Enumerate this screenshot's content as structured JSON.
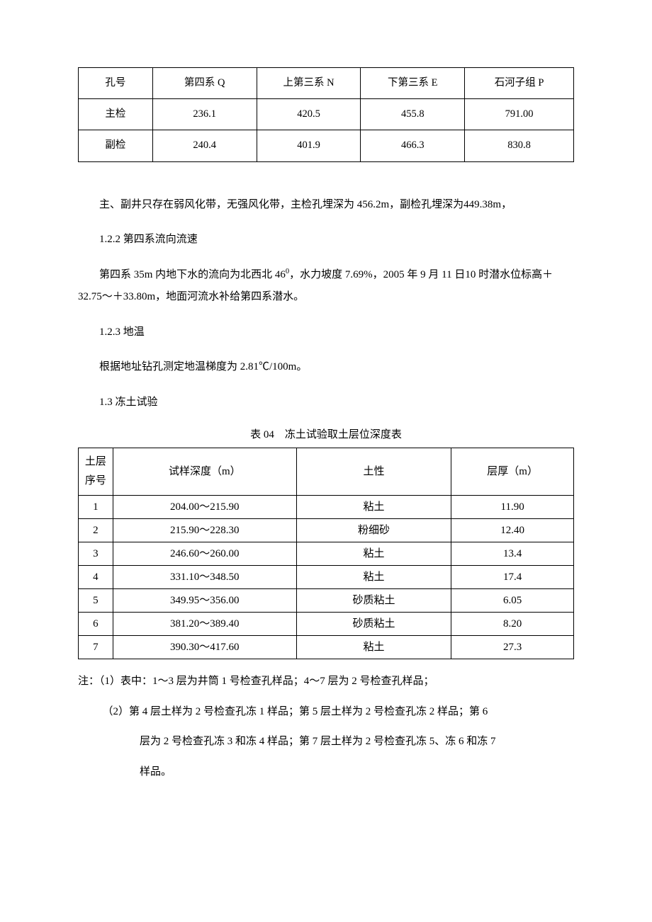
{
  "table1": {
    "headers": [
      "孔号",
      "第四系 Q",
      "上第三系 N",
      "下第三系 E",
      "石河子组 P"
    ],
    "rows": [
      [
        "主检",
        "236.1",
        "420.5",
        "455.8",
        "791.00"
      ],
      [
        "副检",
        "240.4",
        "401.9",
        "466.3",
        "830.8"
      ]
    ],
    "col_widths_pct": [
      15,
      21,
      21,
      21,
      22
    ]
  },
  "paragraphs": {
    "p1": "主、副井只存在弱风化带，无强风化带，主检孔埋深为 456.2m，副检孔埋深为449.38m，",
    "p2_heading": "1.2.2 第四系流向流速",
    "p3_a": "第四系 35m 内地下水的流向为北西北 46",
    "p3_sup": "0",
    "p3_b": "，水力坡度 7.69%，2005 年 9 月 11 日10 时潜水位标高＋32.75～＋33.80m，地面河流水补给第四系潜水。",
    "p4_heading": "1.2.3 地温",
    "p5": "根据地址钻孔测定地温梯度为 2.81℃/100m。",
    "p6_heading": "1.3 冻土试验"
  },
  "table2": {
    "caption": "表 04 冻土试验取土层位深度表",
    "headers": [
      "土层序号",
      "试样深度（m）",
      "土性",
      "层厚（m）"
    ],
    "rows": [
      [
        "1",
        "204.00～215.90",
        "粘土",
        "11.90"
      ],
      [
        "2",
        "215.90～228.30",
        "粉细砂",
        "12.40"
      ],
      [
        "3",
        "246.60～260.00",
        "粘土",
        "13.4"
      ],
      [
        "4",
        "331.10～348.50",
        "粘土",
        "17.4"
      ],
      [
        "5",
        "349.95～356.00",
        "砂质粘土",
        "6.05"
      ],
      [
        "6",
        "381.20～389.40",
        "砂质粘土",
        "8.20"
      ],
      [
        "7",
        "390.30～417.60",
        "粘土",
        "27.3"
      ]
    ]
  },
  "notes": {
    "n1": "注：（1）表中：1～3 层为井筒 1 号检查孔样品；4～7 层为 2 号检查孔样品；",
    "n2": "（2）第 4 层土样为 2 号检查孔冻 1 样品；第 5 层土样为 2 号检查孔冻 2 样品；第 6",
    "n2b": "层为 2 号检查孔冻 3 和冻 4 样品；第 7 层土样为 2 号检查孔冻 5、冻 6 和冻 7",
    "n2c": "样品。"
  }
}
